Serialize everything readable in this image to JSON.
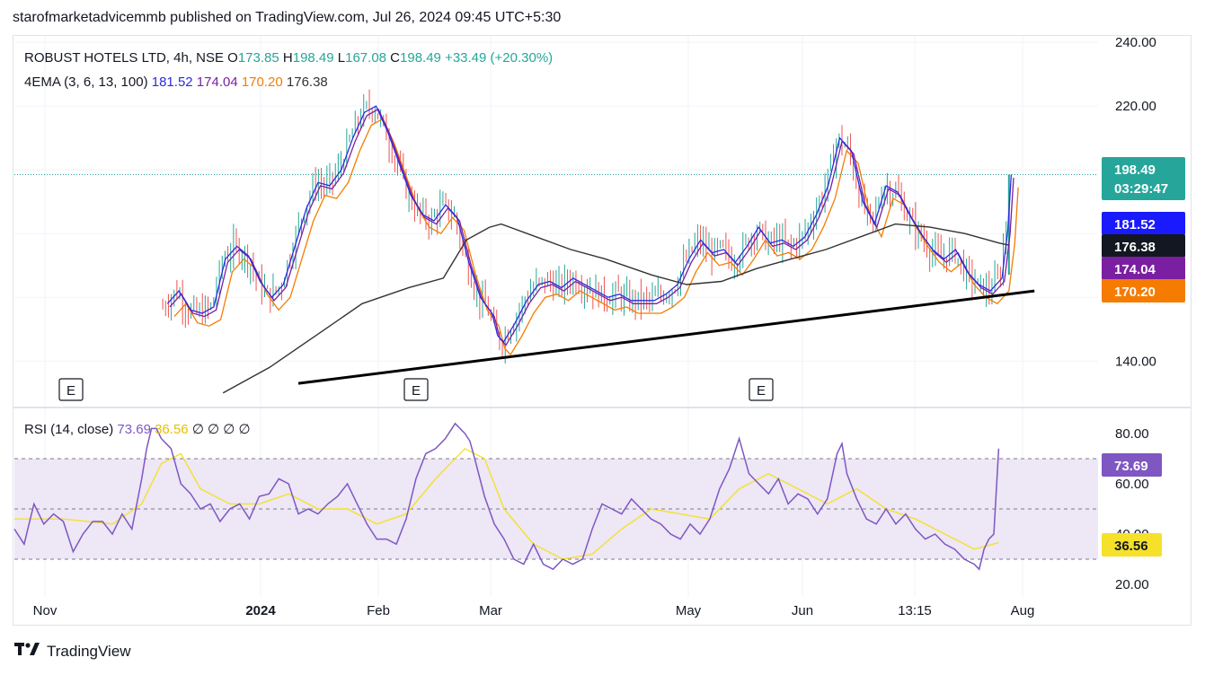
{
  "header": {
    "text": "starofmarketadvicemmb published on TradingView.com, Jul 26, 2024 09:45 UTC+5:30"
  },
  "footer": {
    "brand": "TradingView",
    "logo_icon": "tradingview-logo-icon"
  },
  "colors": {
    "up": "#26a69a",
    "down": "#ef5350",
    "ema3": "#2b2be0",
    "ema6": "#7b1fa2",
    "ema13": "#f57c00",
    "ema100": "#333333",
    "rsi": "#7e57c2",
    "rsi_ma": "#f5e12a",
    "band": "#ede7f6",
    "trendline": "#000000"
  },
  "chart_data": [
    {
      "type": "candlestick",
      "title": "ROBUST HOTELS LTD, 4h, NSE",
      "ohlc": {
        "o_label": "O",
        "o": "173.85",
        "h_label": "H",
        "h": "198.49",
        "l_label": "L",
        "l": "167.08",
        "c_label": "C",
        "c": "198.49",
        "change": "+33.49 (+20.30%)"
      },
      "indicator": {
        "label": "4EMA (3, 6, 13, 100)",
        "values": [
          "181.52",
          "174.04",
          "170.20",
          "176.38"
        ]
      },
      "price_ticks": [
        "240.00",
        "220.00",
        "140.00"
      ],
      "ylim": [
        126,
        242
      ],
      "time_ticks": [
        "Nov",
        "2024",
        "Feb",
        "Mar",
        "May",
        "Jun",
        "13:15",
        "Aug"
      ],
      "price_labels": {
        "last": "198.49",
        "countdown": "03:29:47",
        "ema3": "181.52",
        "ema100": "176.38",
        "ema6": "174.04",
        "ema13": "170.20"
      },
      "event_markers": [
        "E",
        "E",
        "E"
      ],
      "trendline": {
        "start": [
          0.245,
          133
        ],
        "end": [
          0.88,
          162
        ]
      },
      "close_path": [
        [
          0,
          120
        ],
        [
          0.01,
          140
        ],
        [
          0.02,
          158
        ],
        [
          0.03,
          152
        ],
        [
          0.04,
          148
        ],
        [
          0.05,
          150
        ],
        [
          0.06,
          146
        ],
        [
          0.07,
          147
        ],
        [
          0.08,
          149
        ],
        [
          0.09,
          148
        ],
        [
          0.1,
          154
        ],
        [
          0.11,
          157
        ],
        [
          0.12,
          152
        ],
        [
          0.13,
          158
        ],
        [
          0.14,
          162
        ],
        [
          0.15,
          156
        ],
        [
          0.16,
          155
        ],
        [
          0.17,
          157
        ],
        [
          0.18,
          172
        ],
        [
          0.19,
          176
        ],
        [
          0.2,
          173
        ],
        [
          0.21,
          165
        ],
        [
          0.22,
          160
        ],
        [
          0.23,
          164
        ],
        [
          0.24,
          176
        ],
        [
          0.25,
          188
        ],
        [
          0.26,
          196
        ],
        [
          0.27,
          195
        ],
        [
          0.28,
          200
        ],
        [
          0.29,
          210
        ],
        [
          0.3,
          218
        ],
        [
          0.31,
          220
        ],
        [
          0.32,
          212
        ],
        [
          0.33,
          202
        ],
        [
          0.34,
          192
        ],
        [
          0.35,
          186
        ],
        [
          0.36,
          184
        ],
        [
          0.37,
          189
        ],
        [
          0.38,
          185
        ],
        [
          0.39,
          171
        ],
        [
          0.4,
          160
        ],
        [
          0.41,
          155
        ],
        [
          0.415,
          148
        ],
        [
          0.42,
          146
        ],
        [
          0.43,
          152
        ],
        [
          0.44,
          159
        ],
        [
          0.45,
          164
        ],
        [
          0.46,
          165
        ],
        [
          0.47,
          163
        ],
        [
          0.48,
          166
        ],
        [
          0.49,
          164
        ],
        [
          0.5,
          162
        ],
        [
          0.51,
          160
        ],
        [
          0.52,
          161
        ],
        [
          0.53,
          159
        ],
        [
          0.54,
          159
        ],
        [
          0.55,
          159
        ],
        [
          0.56,
          161
        ],
        [
          0.57,
          164
        ],
        [
          0.58,
          172
        ],
        [
          0.59,
          178
        ],
        [
          0.6,
          174
        ],
        [
          0.61,
          175
        ],
        [
          0.62,
          171
        ],
        [
          0.63,
          176
        ],
        [
          0.64,
          182
        ],
        [
          0.65,
          177
        ],
        [
          0.66,
          178
        ],
        [
          0.67,
          176
        ],
        [
          0.68,
          179
        ],
        [
          0.69,
          186
        ],
        [
          0.7,
          195
        ],
        [
          0.71,
          210
        ],
        [
          0.72,
          206
        ],
        [
          0.73,
          190
        ],
        [
          0.74,
          183
        ],
        [
          0.75,
          195
        ],
        [
          0.76,
          193
        ],
        [
          0.77,
          186
        ],
        [
          0.78,
          180
        ],
        [
          0.79,
          175
        ],
        [
          0.8,
          172
        ],
        [
          0.81,
          175
        ],
        [
          0.82,
          168
        ],
        [
          0.83,
          164
        ],
        [
          0.84,
          162
        ],
        [
          0.85,
          166
        ],
        [
          0.855,
          181
        ],
        [
          0.858,
          198.49
        ]
      ],
      "ema100_path": [
        [
          0.18,
          130
        ],
        [
          0.22,
          138
        ],
        [
          0.26,
          148
        ],
        [
          0.3,
          158
        ],
        [
          0.34,
          163
        ],
        [
          0.37,
          166
        ],
        [
          0.39,
          178
        ],
        [
          0.41,
          182
        ],
        [
          0.42,
          183
        ],
        [
          0.45,
          179
        ],
        [
          0.48,
          175
        ],
        [
          0.51,
          172
        ],
        [
          0.55,
          167
        ],
        [
          0.58,
          164
        ],
        [
          0.61,
          165
        ],
        [
          0.64,
          169
        ],
        [
          0.67,
          172
        ],
        [
          0.7,
          175
        ],
        [
          0.73,
          179
        ],
        [
          0.76,
          183
        ],
        [
          0.79,
          182
        ],
        [
          0.82,
          180
        ],
        [
          0.85,
          177
        ],
        [
          0.858,
          176.38
        ]
      ]
    },
    {
      "type": "line",
      "title": "RSI (14, close)",
      "values_labels": [
        "73.69",
        "36.56",
        "∅",
        "∅",
        "∅",
        "∅"
      ],
      "ticks": [
        "80.00",
        "60.00",
        "40.00",
        "20.00"
      ],
      "ylim": [
        15,
        90
      ],
      "bands": [
        30,
        50,
        70
      ],
      "last": {
        "rsi": "73.69",
        "ma": "36.56"
      },
      "rsi_path": [
        [
          0,
          42
        ],
        [
          0.01,
          36
        ],
        [
          0.015,
          44
        ],
        [
          0.02,
          52
        ],
        [
          0.03,
          44
        ],
        [
          0.04,
          48
        ],
        [
          0.05,
          45
        ],
        [
          0.06,
          33
        ],
        [
          0.07,
          40
        ],
        [
          0.08,
          45
        ],
        [
          0.09,
          45
        ],
        [
          0.1,
          40
        ],
        [
          0.11,
          48
        ],
        [
          0.12,
          42
        ],
        [
          0.13,
          62
        ],
        [
          0.135,
          74
        ],
        [
          0.14,
          82
        ],
        [
          0.145,
          82
        ],
        [
          0.15,
          78
        ],
        [
          0.16,
          74
        ],
        [
          0.17,
          60
        ],
        [
          0.18,
          56
        ],
        [
          0.19,
          50
        ],
        [
          0.2,
          52
        ],
        [
          0.21,
          45
        ],
        [
          0.22,
          50
        ],
        [
          0.23,
          52
        ],
        [
          0.24,
          46
        ],
        [
          0.25,
          55
        ],
        [
          0.26,
          56
        ],
        [
          0.27,
          62
        ],
        [
          0.28,
          60
        ],
        [
          0.29,
          48
        ],
        [
          0.3,
          50
        ],
        [
          0.31,
          48
        ],
        [
          0.32,
          52
        ],
        [
          0.33,
          55
        ],
        [
          0.34,
          60
        ],
        [
          0.35,
          52
        ],
        [
          0.36,
          44
        ],
        [
          0.37,
          38
        ],
        [
          0.38,
          38
        ],
        [
          0.39,
          36
        ],
        [
          0.4,
          46
        ],
        [
          0.41,
          62
        ],
        [
          0.42,
          72
        ],
        [
          0.43,
          74
        ],
        [
          0.44,
          78
        ],
        [
          0.45,
          84
        ],
        [
          0.46,
          80
        ],
        [
          0.465,
          77
        ],
        [
          0.47,
          70
        ],
        [
          0.48,
          55
        ],
        [
          0.49,
          44
        ],
        [
          0.5,
          38
        ],
        [
          0.51,
          30
        ],
        [
          0.52,
          28
        ],
        [
          0.53,
          36
        ],
        [
          0.54,
          28
        ],
        [
          0.55,
          26
        ],
        [
          0.56,
          30
        ],
        [
          0.57,
          28
        ],
        [
          0.58,
          30
        ],
        [
          0.59,
          42
        ],
        [
          0.6,
          52
        ],
        [
          0.61,
          50
        ],
        [
          0.62,
          48
        ],
        [
          0.63,
          54
        ],
        [
          0.64,
          50
        ],
        [
          0.65,
          46
        ],
        [
          0.66,
          44
        ],
        [
          0.67,
          40
        ],
        [
          0.68,
          38
        ],
        [
          0.69,
          44
        ],
        [
          0.7,
          40
        ],
        [
          0.71,
          46
        ],
        [
          0.72,
          58
        ],
        [
          0.73,
          66
        ],
        [
          0.74,
          78
        ],
        [
          0.75,
          64
        ],
        [
          0.76,
          60
        ],
        [
          0.77,
          56
        ],
        [
          0.78,
          62
        ],
        [
          0.79,
          52
        ],
        [
          0.8,
          56
        ],
        [
          0.81,
          54
        ],
        [
          0.82,
          48
        ],
        [
          0.83,
          54
        ],
        [
          0.84,
          72
        ],
        [
          0.845,
          76
        ],
        [
          0.85,
          64
        ],
        [
          0.86,
          54
        ],
        [
          0.87,
          46
        ],
        [
          0.88,
          44
        ],
        [
          0.89,
          50
        ],
        [
          0.9,
          44
        ],
        [
          0.91,
          48
        ],
        [
          0.92,
          42
        ],
        [
          0.93,
          38
        ],
        [
          0.94,
          40
        ],
        [
          0.95,
          36
        ],
        [
          0.96,
          34
        ],
        [
          0.97,
          30
        ],
        [
          0.98,
          28
        ],
        [
          0.985,
          26
        ],
        [
          0.99,
          34
        ],
        [
          0.995,
          38
        ],
        [
          1.0,
          40
        ],
        [
          1.005,
          74
        ]
      ],
      "ma_path": [
        [
          0,
          46
        ],
        [
          0.05,
          46
        ],
        [
          0.1,
          44
        ],
        [
          0.13,
          52
        ],
        [
          0.15,
          68
        ],
        [
          0.17,
          72
        ],
        [
          0.19,
          58
        ],
        [
          0.22,
          52
        ],
        [
          0.25,
          52
        ],
        [
          0.28,
          56
        ],
        [
          0.31,
          50
        ],
        [
          0.34,
          50
        ],
        [
          0.37,
          44
        ],
        [
          0.4,
          48
        ],
        [
          0.43,
          62
        ],
        [
          0.46,
          74
        ],
        [
          0.48,
          70
        ],
        [
          0.5,
          50
        ],
        [
          0.53,
          36
        ],
        [
          0.56,
          30
        ],
        [
          0.59,
          32
        ],
        [
          0.62,
          42
        ],
        [
          0.65,
          50
        ],
        [
          0.68,
          48
        ],
        [
          0.71,
          46
        ],
        [
          0.74,
          58
        ],
        [
          0.77,
          64
        ],
        [
          0.8,
          58
        ],
        [
          0.83,
          52
        ],
        [
          0.86,
          58
        ],
        [
          0.89,
          50
        ],
        [
          0.92,
          46
        ],
        [
          0.95,
          40
        ],
        [
          0.98,
          34
        ],
        [
          1.005,
          36.56
        ]
      ]
    }
  ]
}
